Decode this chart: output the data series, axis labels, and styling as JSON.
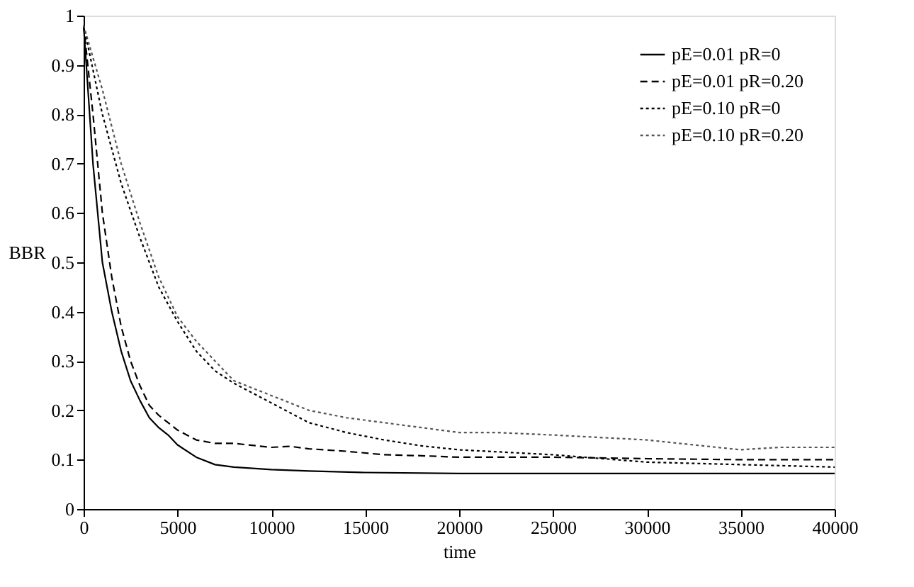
{
  "chart_data": {
    "type": "line",
    "xlabel": "time",
    "ylabel": "BBR",
    "xlim": [
      0,
      40000
    ],
    "xticks": [
      0,
      5000,
      10000,
      15000,
      20000,
      25000,
      30000,
      35000,
      40000
    ],
    "ylim": [
      0,
      1
    ],
    "yticks": [
      0,
      0.1,
      0.2,
      0.3,
      0.4,
      0.5,
      0.6,
      0.7,
      0.8,
      0.9,
      1
    ],
    "grid": false,
    "legend": "top right",
    "marker": "none",
    "series": [
      {
        "name": "pE=0.01  pR=0",
        "color": "#000000",
        "line_style": "solid",
        "x": [
          0,
          500,
          1000,
          1500,
          2000,
          2500,
          3000,
          3500,
          4000,
          4500,
          5000,
          6000,
          7000,
          8000,
          10000,
          12000,
          15000,
          20000,
          25000,
          30000,
          35000,
          40000
        ],
        "values": [
          0.98,
          0.7,
          0.5,
          0.4,
          0.32,
          0.26,
          0.22,
          0.185,
          0.165,
          0.15,
          0.13,
          0.105,
          0.09,
          0.085,
          0.08,
          0.077,
          0.074,
          0.072,
          0.072,
          0.072,
          0.072,
          0.072
        ]
      },
      {
        "name": "pE=0.01  pR=0.20",
        "color": "#000000",
        "line_style": "dashed",
        "x": [
          0,
          500,
          1000,
          1500,
          2000,
          2500,
          3000,
          3500,
          4000,
          5000,
          6000,
          7000,
          8000,
          10000,
          11000,
          12000,
          14000,
          16000,
          18000,
          20000,
          25000,
          30000,
          35000,
          40000
        ],
        "values": [
          0.98,
          0.8,
          0.6,
          0.47,
          0.37,
          0.3,
          0.25,
          0.21,
          0.19,
          0.16,
          0.14,
          0.133,
          0.133,
          0.125,
          0.127,
          0.122,
          0.117,
          0.11,
          0.108,
          0.105,
          0.105,
          0.102,
          0.1,
          0.1
        ]
      },
      {
        "name": "pE=0.10  pR=0",
        "color": "#000000",
        "line_style": "dotted",
        "x": [
          0,
          1000,
          2000,
          3000,
          4000,
          5000,
          6000,
          7000,
          8000,
          9000,
          10000,
          12000,
          14000,
          16000,
          18000,
          20000,
          25000,
          30000,
          35000,
          40000
        ],
        "values": [
          0.98,
          0.8,
          0.66,
          0.55,
          0.45,
          0.38,
          0.32,
          0.28,
          0.255,
          0.235,
          0.215,
          0.175,
          0.155,
          0.14,
          0.128,
          0.12,
          0.11,
          0.095,
          0.09,
          0.085
        ]
      },
      {
        "name": "pE=0.10  pR=0.20",
        "color": "#555555",
        "line_style": "dotted",
        "x": [
          0,
          1000,
          2000,
          3000,
          4000,
          5000,
          6000,
          7000,
          8000,
          10000,
          12000,
          14000,
          16000,
          18000,
          20000,
          22000,
          25000,
          30000,
          35000,
          37000,
          40000
        ],
        "values": [
          0.98,
          0.85,
          0.7,
          0.58,
          0.47,
          0.39,
          0.34,
          0.3,
          0.26,
          0.23,
          0.2,
          0.185,
          0.175,
          0.165,
          0.155,
          0.155,
          0.15,
          0.14,
          0.12,
          0.125,
          0.125
        ]
      }
    ]
  }
}
